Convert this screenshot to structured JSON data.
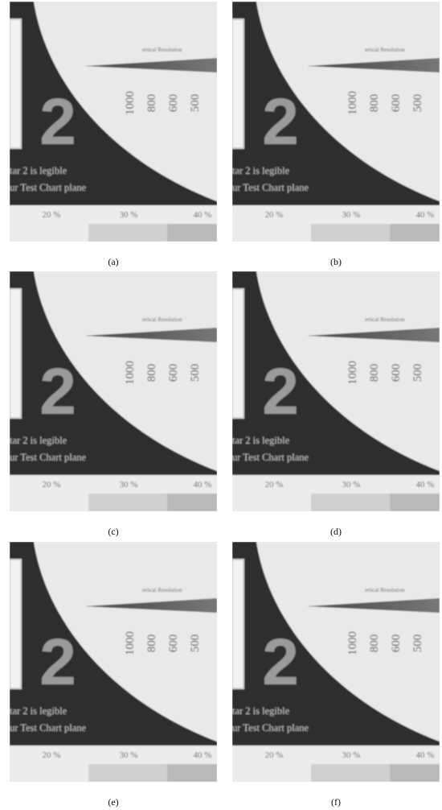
{
  "panels": [
    {
      "caption": "(a)"
    },
    {
      "caption": "(b)"
    },
    {
      "caption": "(c)"
    },
    {
      "caption": "(d)"
    },
    {
      "caption": "(e)"
    },
    {
      "caption": "(f)"
    }
  ],
  "chart_content": {
    "big_digit": "2",
    "title_fragment": "ertical Resolution",
    "resolution_ticks": [
      "1000",
      "800",
      "600",
      "500"
    ],
    "text_line_1": "tar 2 is legible",
    "text_line_2": "ur Test Chart plane",
    "percent_labels": [
      "20 %",
      "30 %",
      "40 %"
    ]
  },
  "colors": {
    "dark_area": "#2f2f2f",
    "light_area": "#e9e9e9",
    "gray_digit": "#9a9a9a"
  }
}
